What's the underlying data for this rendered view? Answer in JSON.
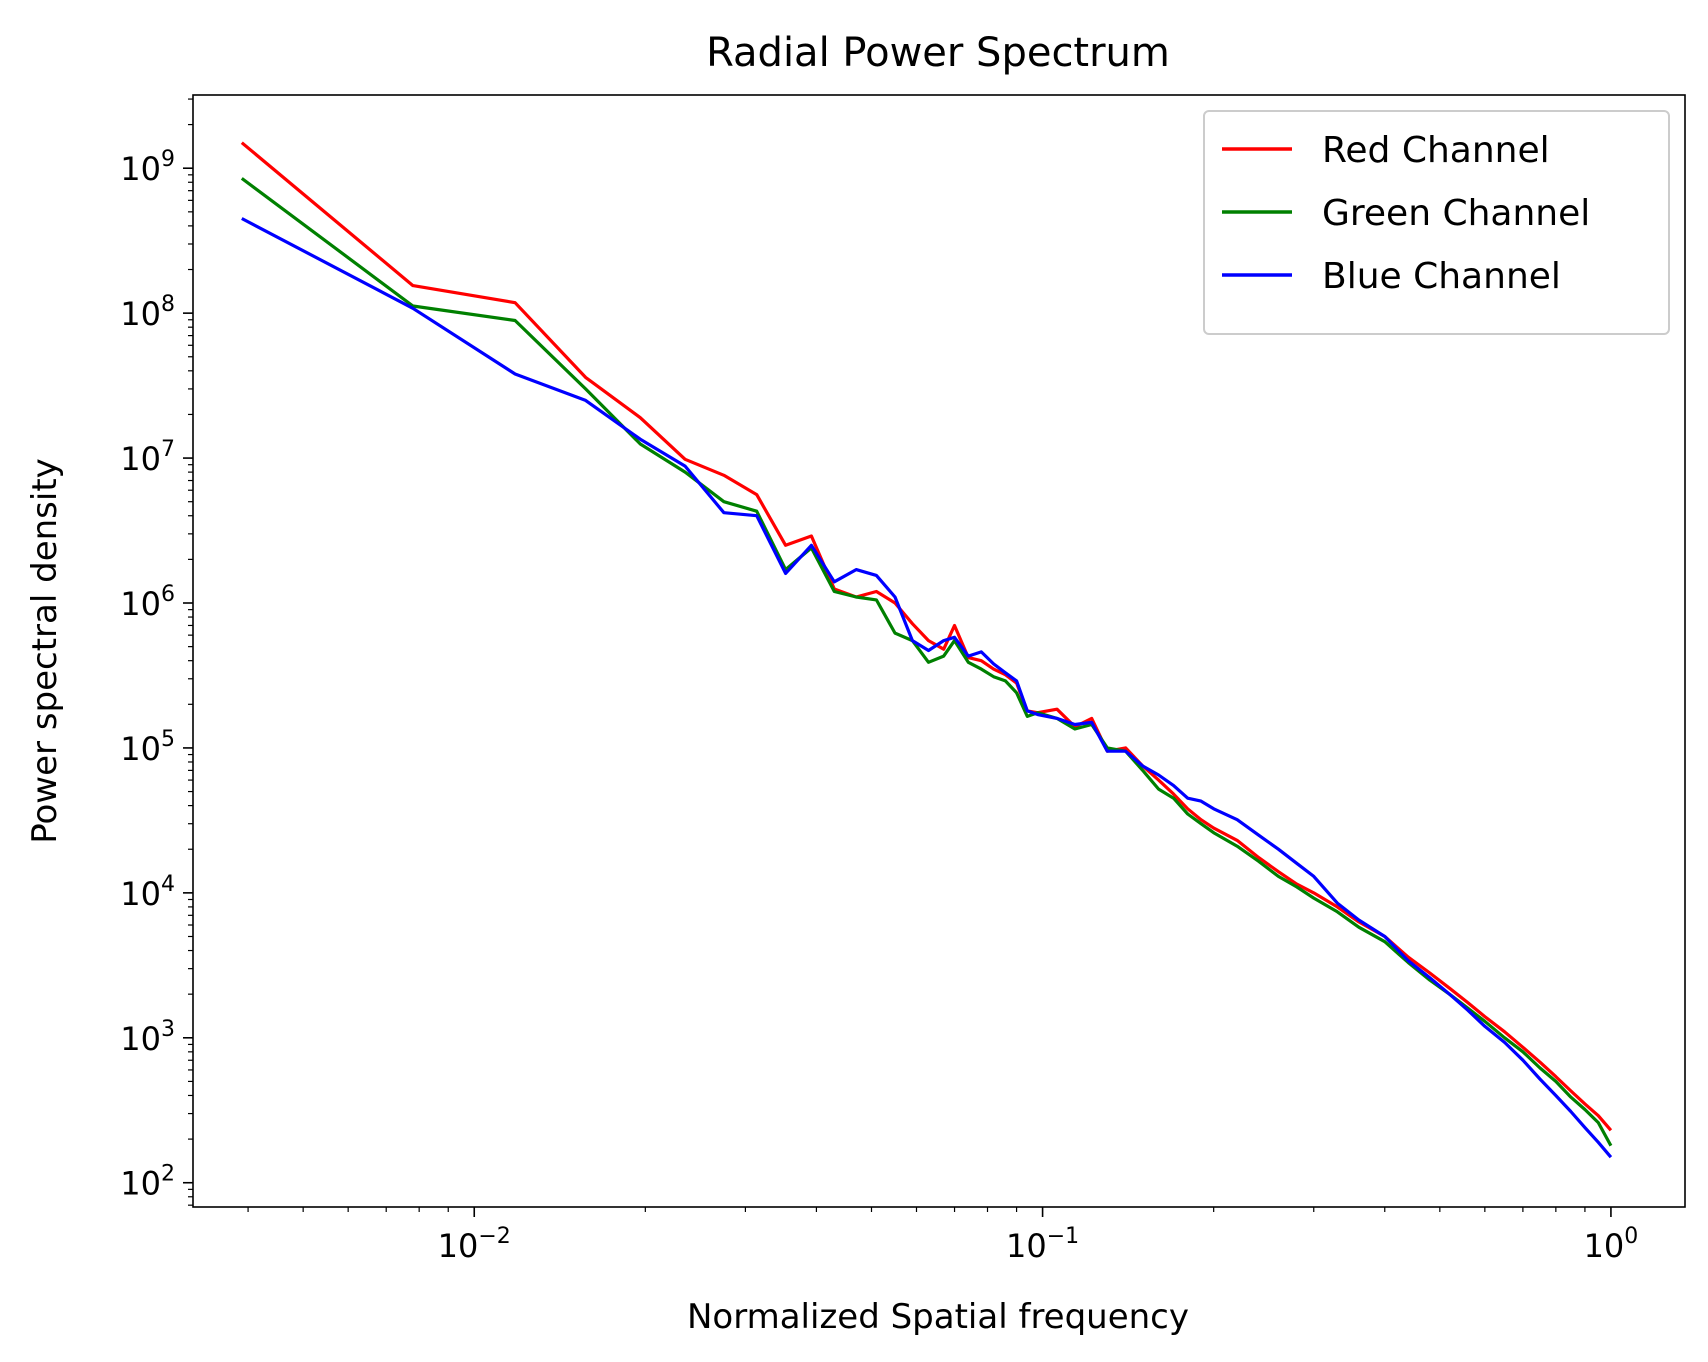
{
  "chart_data": {
    "type": "line",
    "title": "Radial Power Spectrum",
    "xlabel": "Normalized Spatial frequency",
    "ylabel": "Power spectral density",
    "xscale": "log",
    "yscale": "log",
    "xlim": [
      0.0032,
      1.35
    ],
    "ylim": [
      68,
      3200000000.0
    ],
    "xticks": [
      {
        "value": 0.01,
        "base": "10",
        "exp": "−2"
      },
      {
        "value": 0.1,
        "base": "10",
        "exp": "−1"
      },
      {
        "value": 1,
        "base": "10",
        "exp": "0"
      }
    ],
    "yticks": [
      {
        "value": 100,
        "base": "10",
        "exp": "2"
      },
      {
        "value": 1000,
        "base": "10",
        "exp": "3"
      },
      {
        "value": 10000,
        "base": "10",
        "exp": "4"
      },
      {
        "value": 100000,
        "base": "10",
        "exp": "5"
      },
      {
        "value": 1000000,
        "base": "10",
        "exp": "6"
      },
      {
        "value": 10000000,
        "base": "10",
        "exp": "7"
      },
      {
        "value": 100000000,
        "base": "10",
        "exp": "8"
      },
      {
        "value": 1000000000,
        "base": "10",
        "exp": "9"
      }
    ],
    "grid": false,
    "legend_position": "top-right",
    "series": [
      {
        "name": "Red Channel",
        "color": "#ff0000",
        "points": [
          [
            0.0039,
            1500000000.0
          ],
          [
            0.0078,
            155000000.0
          ],
          [
            0.0118,
            118000000.0
          ],
          [
            0.0157,
            36000000.0
          ],
          [
            0.0196,
            19000000.0
          ],
          [
            0.0235,
            9800000.0
          ],
          [
            0.0275,
            7600000.0
          ],
          [
            0.0314,
            5600000.0
          ],
          [
            0.0353,
            2500000.0
          ],
          [
            0.0392,
            2900000.0
          ],
          [
            0.043,
            1250000.0
          ],
          [
            0.047,
            1100000.0
          ],
          [
            0.051,
            1200000.0
          ],
          [
            0.055,
            1000000.0
          ],
          [
            0.059,
            720000.0
          ],
          [
            0.063,
            550000.0
          ],
          [
            0.067,
            480000.0
          ],
          [
            0.07,
            700000.0
          ],
          [
            0.074,
            420000.0
          ],
          [
            0.078,
            400000.0
          ],
          [
            0.082,
            350000.0
          ],
          [
            0.086,
            320000.0
          ],
          [
            0.09,
            280000.0
          ],
          [
            0.094,
            180000.0
          ],
          [
            0.098,
            175000.0
          ],
          [
            0.106,
            185000.0
          ],
          [
            0.114,
            140000.0
          ],
          [
            0.122,
            160000.0
          ],
          [
            0.13,
            95000.0
          ],
          [
            0.14,
            100000.0
          ],
          [
            0.15,
            75000.0
          ],
          [
            0.16,
            60000.0
          ],
          [
            0.17,
            48000.0
          ],
          [
            0.18,
            38000.0
          ],
          [
            0.19,
            32000.0
          ],
          [
            0.2,
            28000.0
          ],
          [
            0.22,
            23000.0
          ],
          [
            0.24,
            17500.0
          ],
          [
            0.26,
            14000.0
          ],
          [
            0.28,
            11500.0
          ],
          [
            0.3,
            10000.0
          ],
          [
            0.33,
            8000.0
          ],
          [
            0.36,
            6300.0
          ],
          [
            0.4,
            5000.0
          ],
          [
            0.44,
            3600.0
          ],
          [
            0.48,
            2800.0
          ],
          [
            0.52,
            2200.0
          ],
          [
            0.56,
            1750.0
          ],
          [
            0.6,
            1400.0
          ],
          [
            0.65,
            1100.0
          ],
          [
            0.7,
            860
          ],
          [
            0.75,
            680
          ],
          [
            0.8,
            540
          ],
          [
            0.85,
            430
          ],
          [
            0.9,
            350
          ],
          [
            0.95,
            290
          ],
          [
            1.0,
            230
          ]
        ]
      },
      {
        "name": "Green Channel",
        "color": "#008000",
        "points": [
          [
            0.0039,
            850000000.0
          ],
          [
            0.0078,
            112000000.0
          ],
          [
            0.0118,
            89000000.0
          ],
          [
            0.0157,
            30000000.0
          ],
          [
            0.0196,
            12500000.0
          ],
          [
            0.0235,
            8000000.0
          ],
          [
            0.0275,
            5000000.0
          ],
          [
            0.0314,
            4300000.0
          ],
          [
            0.0353,
            1700000.0
          ],
          [
            0.0392,
            2400000.0
          ],
          [
            0.043,
            1200000.0
          ],
          [
            0.047,
            1100000.0
          ],
          [
            0.051,
            1050000.0
          ],
          [
            0.055,
            620000.0
          ],
          [
            0.059,
            550000.0
          ],
          [
            0.063,
            390000.0
          ],
          [
            0.067,
            430000.0
          ],
          [
            0.07,
            550000.0
          ],
          [
            0.074,
            390000.0
          ],
          [
            0.078,
            350000.0
          ],
          [
            0.082,
            310000.0
          ],
          [
            0.086,
            290000.0
          ],
          [
            0.09,
            240000.0
          ],
          [
            0.094,
            165000.0
          ],
          [
            0.098,
            175000.0
          ],
          [
            0.106,
            160000.0
          ],
          [
            0.114,
            135000.0
          ],
          [
            0.122,
            145000.0
          ],
          [
            0.13,
            100000.0
          ],
          [
            0.14,
            95000.0
          ],
          [
            0.15,
            70000.0
          ],
          [
            0.16,
            52000.0
          ],
          [
            0.17,
            45000.0
          ],
          [
            0.18,
            35000.0
          ],
          [
            0.19,
            30000.0
          ],
          [
            0.2,
            26000.0
          ],
          [
            0.22,
            21000.0
          ],
          [
            0.24,
            16500.0
          ],
          [
            0.26,
            13000.0
          ],
          [
            0.28,
            11000.0
          ],
          [
            0.3,
            9200.0
          ],
          [
            0.33,
            7400.0
          ],
          [
            0.36,
            5800.0
          ],
          [
            0.4,
            4600.0
          ],
          [
            0.44,
            3300.0
          ],
          [
            0.48,
            2500.0
          ],
          [
            0.52,
            2000.0
          ],
          [
            0.56,
            1600.0
          ],
          [
            0.6,
            1300.0
          ],
          [
            0.65,
            1000.0
          ],
          [
            0.7,
            800
          ],
          [
            0.75,
            620
          ],
          [
            0.8,
            500
          ],
          [
            0.85,
            390
          ],
          [
            0.9,
            320
          ],
          [
            0.95,
            260
          ],
          [
            1.0,
            180
          ]
        ]
      },
      {
        "name": "Blue Channel",
        "color": "#0000ff",
        "points": [
          [
            0.0039,
            450000000.0
          ],
          [
            0.0078,
            108000000.0
          ],
          [
            0.0118,
            38000000.0
          ],
          [
            0.0157,
            25000000.0
          ],
          [
            0.0196,
            13500000.0
          ],
          [
            0.0235,
            8800000.0
          ],
          [
            0.0275,
            4200000.0
          ],
          [
            0.0314,
            4000000.0
          ],
          [
            0.0353,
            1600000.0
          ],
          [
            0.0392,
            2500000.0
          ],
          [
            0.043,
            1400000.0
          ],
          [
            0.047,
            1700000.0
          ],
          [
            0.051,
            1550000.0
          ],
          [
            0.055,
            1100000.0
          ],
          [
            0.059,
            550000.0
          ],
          [
            0.063,
            470000.0
          ],
          [
            0.067,
            550000.0
          ],
          [
            0.07,
            580000.0
          ],
          [
            0.074,
            430000.0
          ],
          [
            0.078,
            460000.0
          ],
          [
            0.082,
            380000.0
          ],
          [
            0.086,
            330000.0
          ],
          [
            0.09,
            290000.0
          ],
          [
            0.094,
            180000.0
          ],
          [
            0.098,
            170000.0
          ],
          [
            0.106,
            160000.0
          ],
          [
            0.114,
            145000.0
          ],
          [
            0.122,
            150000.0
          ],
          [
            0.13,
            95000.0
          ],
          [
            0.14,
            95000.0
          ],
          [
            0.15,
            75000.0
          ],
          [
            0.16,
            65000.0
          ],
          [
            0.17,
            55000.0
          ],
          [
            0.18,
            45000.0
          ],
          [
            0.19,
            43000.0
          ],
          [
            0.2,
            38000.0
          ],
          [
            0.22,
            32000.0
          ],
          [
            0.24,
            25000.0
          ],
          [
            0.26,
            20000.0
          ],
          [
            0.28,
            16000.0
          ],
          [
            0.3,
            13000.0
          ],
          [
            0.33,
            8500.0
          ],
          [
            0.36,
            6500.0
          ],
          [
            0.4,
            5000.0
          ],
          [
            0.44,
            3400.0
          ],
          [
            0.48,
            2600.0
          ],
          [
            0.52,
            2000.0
          ],
          [
            0.56,
            1550.0
          ],
          [
            0.6,
            1200.0
          ],
          [
            0.65,
            930
          ],
          [
            0.7,
            700
          ],
          [
            0.75,
            520
          ],
          [
            0.8,
            400
          ],
          [
            0.85,
            310
          ],
          [
            0.9,
            240
          ],
          [
            0.95,
            190
          ],
          [
            1.0,
            150
          ]
        ]
      }
    ]
  }
}
